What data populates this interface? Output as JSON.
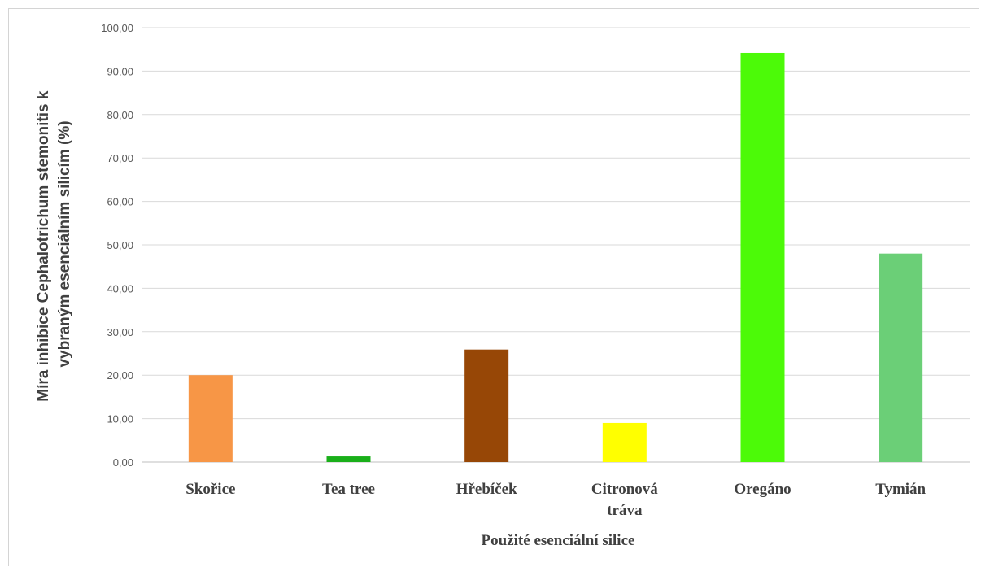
{
  "chart_data": {
    "type": "bar",
    "title": "",
    "xlabel": "Použité esenciální silice",
    "ylabel_lines": [
      "Míra inhibice Cephalotrichum stemonitis k",
      "vybraným esenciálním silicím (%)"
    ],
    "categories": [
      [
        "Skořice"
      ],
      [
        "Tea tree"
      ],
      [
        "Hřebíček"
      ],
      [
        "Citronová",
        "tráva"
      ],
      [
        "Oregáno"
      ],
      [
        "Tymián"
      ]
    ],
    "values": [
      20.0,
      1.3,
      25.9,
      9.0,
      94.2,
      48.0
    ],
    "colors": [
      "#f79646",
      "#1aaf1a",
      "#974706",
      "#ffff00",
      "#4cfa08",
      "#6bcf77"
    ],
    "ylim": [
      0,
      100
    ],
    "yticks": [
      "0,00",
      "10,00",
      "20,00",
      "30,00",
      "40,00",
      "50,00",
      "60,00",
      "70,00",
      "80,00",
      "90,00",
      "100,00"
    ],
    "grid": true,
    "legend": "none"
  }
}
